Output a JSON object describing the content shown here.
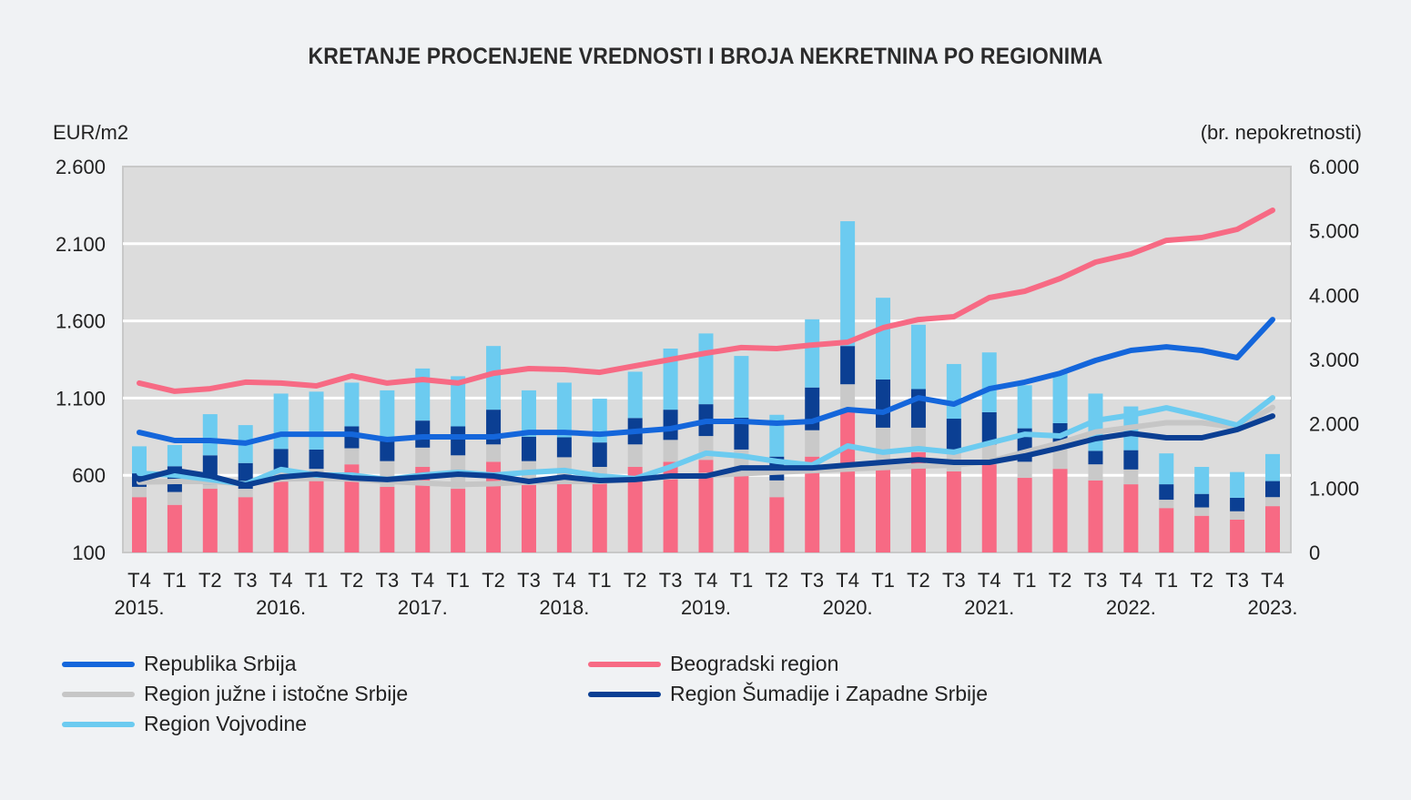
{
  "chart_data": {
    "type": "bar+line",
    "title": "KRETANJE PROCENJENE VREDNOSTI I BROJA NEKRETNINA PO REGIONIMA",
    "ylabel_left": "EUR/m2",
    "ylabel_right": "(br. nepokretnosti)",
    "ylim_left": [
      100,
      2600
    ],
    "yticks_left": [
      "100",
      "600",
      "1.100",
      "1.600",
      "2.100",
      "2.600"
    ],
    "ylim_right": [
      0,
      6000
    ],
    "yticks_right": [
      "0",
      "1.000",
      "2.000",
      "3.000",
      "4.000",
      "5.000",
      "6.000"
    ],
    "grid": true,
    "legend_position": "bottom",
    "categories": [
      "T4",
      "T1",
      "T2",
      "T3",
      "T4",
      "T1",
      "T2",
      "T3",
      "T4",
      "T1",
      "T2",
      "T3",
      "T4",
      "T1",
      "T2",
      "T3",
      "T4",
      "T1",
      "T2",
      "T3",
      "T4",
      "T1",
      "T2",
      "T3",
      "T4",
      "T1",
      "T2",
      "T3",
      "T4",
      "T1",
      "T2",
      "T3",
      "T4"
    ],
    "years": [
      {
        "index": 0,
        "label": "2015."
      },
      {
        "index": 4,
        "label": "2016."
      },
      {
        "index": 8,
        "label": "2017."
      },
      {
        "index": 12,
        "label": "2018."
      },
      {
        "index": 16,
        "label": "2019."
      },
      {
        "index": 20,
        "label": "2020."
      },
      {
        "index": 24,
        "label": "2021."
      },
      {
        "index": 28,
        "label": "2022."
      },
      {
        "index": 32,
        "label": "2023."
      }
    ],
    "bar_series": [
      {
        "name": "Beogradski region",
        "color": "#f76a84",
        "values": [
          860,
          740,
          990,
          860,
          1130,
          1150,
          1370,
          1020,
          1330,
          990,
          1410,
          1050,
          1130,
          1090,
          1330,
          1410,
          1440,
          1200,
          860,
          1490,
          2190,
          1300,
          1560,
          1260,
          1370,
          1160,
          1300,
          1120,
          1060,
          690,
          570,
          510,
          720
        ]
      },
      {
        "name": "Region južne i istočne Srbije",
        "color": "#c9c9c9",
        "values": [
          160,
          200,
          70,
          130,
          150,
          150,
          250,
          400,
          300,
          520,
          270,
          370,
          350,
          240,
          350,
          340,
          370,
          400,
          260,
          410,
          425,
          640,
          380,
          340,
          310,
          250,
          400,
          250,
          230,
          130,
          130,
          130,
          140
        ]
      },
      {
        "name": "Region Šumadije i Zapadne Srbije",
        "color": "#0b3f93",
        "values": [
          210,
          400,
          450,
          400,
          330,
          300,
          340,
          380,
          420,
          450,
          540,
          380,
          310,
          380,
          410,
          470,
          495,
          495,
          370,
          665,
          595,
          750,
          600,
          480,
          500,
          520,
          310,
          210,
          300,
          240,
          210,
          210,
          250
        ]
      },
      {
        "name": "Region Vojvodine",
        "color": "#6ccbf0",
        "values": [
          420,
          330,
          640,
          590,
          860,
          900,
          680,
          720,
          810,
          780,
          990,
          720,
          850,
          680,
          720,
          950,
          1100,
          960,
          650,
          1060,
          1940,
          1270,
          1000,
          850,
          930,
          670,
          780,
          890,
          680,
          480,
          420,
          400,
          420
        ]
      }
    ],
    "line_series": [
      {
        "name": "Republika Srbija",
        "color": "#1466db",
        "values": [
          878,
          825,
          825,
          808,
          866,
          866,
          866,
          831,
          849,
          849,
          849,
          878,
          878,
          866,
          884,
          902,
          949,
          949,
          937,
          949,
          1026,
          1008,
          1102,
          1061,
          1161,
          1203,
          1261,
          1344,
          1409,
          1432,
          1409,
          1362,
          1609
        ]
      },
      {
        "name": "Beogradski region",
        "color": "#f76a84",
        "values": [
          1197,
          1144,
          1161,
          1203,
          1197,
          1179,
          1244,
          1197,
          1220,
          1197,
          1261,
          1291,
          1285,
          1267,
          1309,
          1350,
          1391,
          1427,
          1421,
          1444,
          1462,
          1556,
          1609,
          1627,
          1751,
          1792,
          1875,
          1981,
          2034,
          2122,
          2140,
          2193,
          2317
        ]
      },
      {
        "name": "Region južne i istočne Srbije",
        "color": "#c6c6c6",
        "values": [
          555,
          560,
          560,
          545,
          575,
          580,
          575,
          560,
          550,
          540,
          545,
          555,
          560,
          560,
          575,
          590,
          600,
          610,
          620,
          630,
          640,
          650,
          660,
          665,
          690,
          750,
          810,
          880,
          910,
          940,
          940,
          910,
          1040
        ]
      },
      {
        "name": "Region Šumadije i Zapadne Srbije",
        "color": "#0b3f93",
        "values": [
          572,
          631,
          595,
          536,
          589,
          607,
          583,
          572,
          589,
          607,
          595,
          560,
          589,
          566,
          572,
          595,
          595,
          648,
          648,
          648,
          666,
          684,
          701,
          684,
          684,
          725,
          778,
          837,
          872,
          843,
          843,
          896,
          984
        ]
      },
      {
        "name": "Region Vojvodine",
        "color": "#6ccbf0",
        "values": [
          613,
          601,
          572,
          542,
          637,
          601,
          601,
          572,
          601,
          619,
          601,
          619,
          631,
          595,
          578,
          654,
          743,
          725,
          690,
          666,
          790,
          749,
          772,
          749,
          808,
          866,
          855,
          955,
          990,
          1037,
          984,
          925,
          1102
        ]
      }
    ],
    "legend": [
      {
        "label": "Republika Srbija",
        "color": "#1466db"
      },
      {
        "label": "Beogradski region",
        "color": "#f76a84"
      },
      {
        "label": "Region južne i istočne Srbije",
        "color": "#c6c6c6"
      },
      {
        "label": "Region Šumadije i Zapadne Srbije",
        "color": "#0b3f93"
      },
      {
        "label": "Region Vojvodine",
        "color": "#6ccbf0"
      }
    ]
  }
}
